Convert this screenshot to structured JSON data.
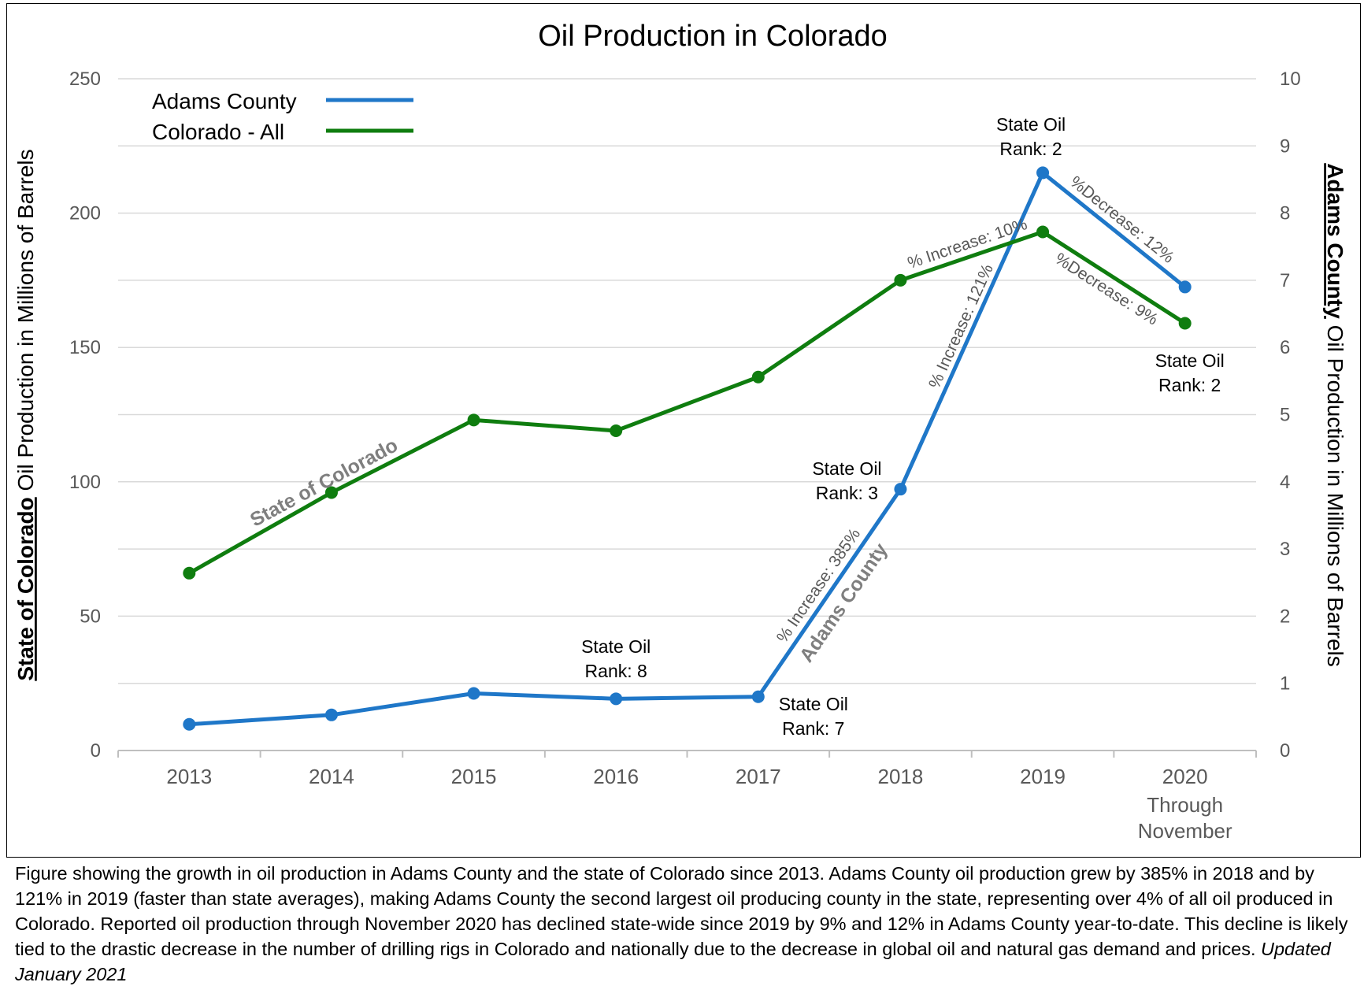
{
  "chart_data": {
    "type": "line",
    "title": "Oil Production in Colorado",
    "categories": [
      "2013",
      "2014",
      "2015",
      "2016",
      "2017",
      "2018",
      "2019",
      "2020"
    ],
    "category_sublabels": {
      "2020": [
        "Through",
        "November"
      ]
    },
    "ylabel_left": {
      "underlined": "State of Colorado",
      "rest": " Oil Production in Millions of Barrels"
    },
    "ylabel_right": {
      "underlined": "Adams County",
      "rest": " Oil Production in Millions of Barrels"
    },
    "ylim_left": [
      0,
      250
    ],
    "ylim_right": [
      0,
      10
    ],
    "yticks_left": [
      "0",
      "50",
      "100",
      "150",
      "200",
      "250"
    ],
    "yticks_right": [
      "0",
      "1",
      "2",
      "3",
      "4",
      "5",
      "6",
      "7",
      "8",
      "9",
      "10"
    ],
    "grid": true,
    "legend_position": "top-left",
    "series": [
      {
        "name": "Adams County",
        "axis": "right",
        "color": "#1f77c8",
        "values": [
          0.39,
          0.53,
          0.85,
          0.77,
          0.8,
          3.89,
          8.6,
          6.9
        ]
      },
      {
        "name": "Colorado - All",
        "axis": "left",
        "color": "#0f7d0f",
        "values": [
          66,
          96,
          123,
          119,
          139,
          175,
          193,
          159
        ]
      }
    ],
    "annotations": {
      "rank_2016": [
        "State Oil",
        "Rank: 8"
      ],
      "rank_2017": [
        "State Oil",
        "Rank: 7"
      ],
      "rank_2018": [
        "State Oil",
        "Rank: 3"
      ],
      "rank_2019": [
        "State Oil",
        "Rank: 2"
      ],
      "rank_2020": [
        "State Oil",
        "Rank: 2"
      ],
      "adams_inc_2018": "% Increase: 385%",
      "adams_inc_2019": "% Increase: 121%",
      "state_inc_2018": "% Increase: 10%",
      "adams_dec_2020": "%Decrease: 12%",
      "state_dec_2020": "%Decrease: 9%",
      "series_label_state": "State of Colorado",
      "series_label_adams": "Adams County"
    }
  },
  "caption": {
    "text": "Figure showing the growth in oil production in Adams County and the state of Colorado since 2013.  Adams County oil production grew by 385% in 2018 and by 121% in 2019 (faster than state averages), making Adams County the second largest oil producing county in the state, representing over 4% of all oil produced in Colorado.  Reported oil production through November 2020 has declined state-wide since 2019 by 9% and 12% in Adams County year-to-date.  This decline is likely tied to the drastic decrease in the number of drilling rigs in Colorado and nationally due to the decrease in global oil and natural gas demand and prices.",
    "updated": "Updated January 2021"
  }
}
